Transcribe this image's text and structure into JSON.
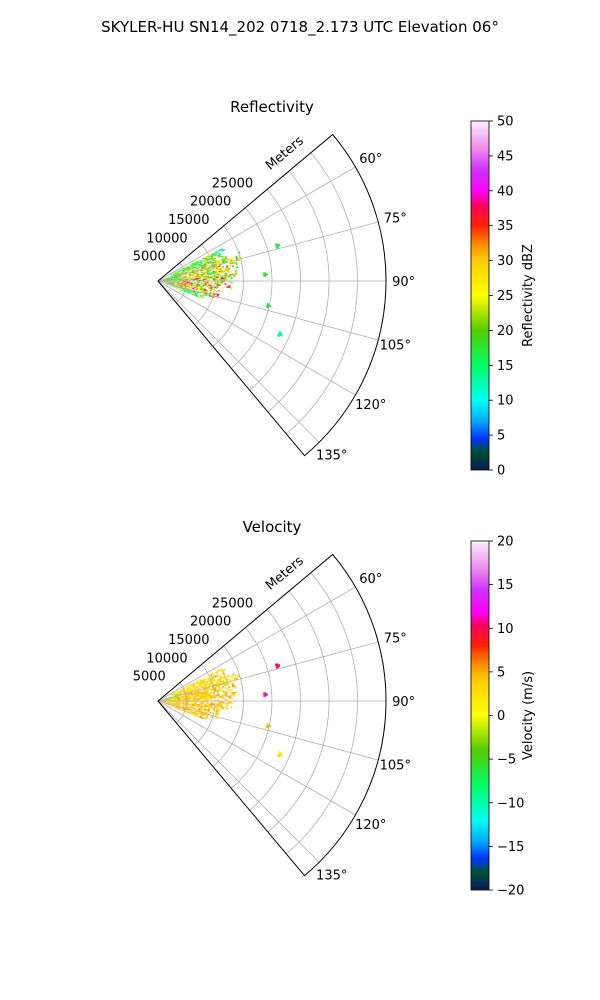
{
  "suptitle": "SKYLER-HU  SN14_202  0718_2.173 UTC Elevation 06°",
  "chart_data": [
    {
      "type": "polar_sector",
      "title": "Reflectivity",
      "field": "reflectivity",
      "range_label": "Meters",
      "theta_range_deg": [
        50,
        140
      ],
      "r_max": 40000,
      "r_ticks": [
        5000,
        10000,
        15000,
        20000,
        25000
      ],
      "r_tick_labels": [
        "5000",
        "10000",
        "15000",
        "20000",
        "25000"
      ],
      "theta_ticks_deg": [
        60,
        75,
        90,
        105,
        120,
        135
      ],
      "theta_tick_labels": [
        "60°",
        "75°",
        "90°",
        "105°",
        "120°",
        "135°"
      ],
      "grid": true,
      "colorbar": {
        "label": "Reflectivity dBZ",
        "vmin": 0,
        "vmax": 50,
        "ticks": [
          0,
          5,
          10,
          15,
          20,
          25,
          30,
          35,
          40,
          45,
          50
        ],
        "tick_labels": [
          "0",
          "5",
          "10",
          "15",
          "20",
          "25",
          "30",
          "35",
          "40",
          "45",
          "50"
        ],
        "stops": [
          [
            0,
            "#0a1a5c"
          ],
          [
            0.05,
            "#00502e"
          ],
          [
            0.09,
            "#0033ff"
          ],
          [
            0.14,
            "#00aaff"
          ],
          [
            0.2,
            "#00ffee"
          ],
          [
            0.3,
            "#00ff66"
          ],
          [
            0.4,
            "#55cc00"
          ],
          [
            0.5,
            "#ffff00"
          ],
          [
            0.6,
            "#ffcc00"
          ],
          [
            0.65,
            "#ff8800"
          ],
          [
            0.7,
            "#ff2200"
          ],
          [
            0.76,
            "#ff0066"
          ],
          [
            0.8,
            "#ff00ff"
          ],
          [
            0.86,
            "#cc33ff"
          ],
          [
            0.92,
            "#ee88ee"
          ],
          [
            1.0,
            "#fff0ff"
          ]
        ]
      },
      "echo_regions": [
        {
          "theta_deg": [
            63,
            70
          ],
          "r_m": [
            2500,
            13000
          ],
          "value": 18,
          "spread": 8
        },
        {
          "theta_deg": [
            70,
            76
          ],
          "r_m": [
            3000,
            15000
          ],
          "value": 24,
          "spread": 10
        },
        {
          "theta_deg": [
            76,
            86
          ],
          "r_m": [
            1000,
            14000
          ],
          "value": 25,
          "spread": 10
        },
        {
          "theta_deg": [
            86,
            96
          ],
          "r_m": [
            500,
            13000
          ],
          "value": 27,
          "spread": 12
        },
        {
          "theta_deg": [
            96,
            106
          ],
          "r_m": [
            500,
            11000
          ],
          "value": 28,
          "spread": 12
        },
        {
          "theta_deg": [
            106,
            112
          ],
          "r_m": [
            1500,
            9000
          ],
          "value": 18,
          "spread": 8
        },
        {
          "theta_deg": [
            70,
            90
          ],
          "r_m": [
            300,
            4000
          ],
          "value": 16,
          "spread": 6
        }
      ],
      "echo_specks": [
        {
          "theta_deg": 73,
          "r_m": 21500,
          "value": 16
        },
        {
          "theta_deg": 86,
          "r_m": 18500,
          "value": 17
        },
        {
          "theta_deg": 102,
          "r_m": 19500,
          "value": 16
        },
        {
          "theta_deg": 113,
          "r_m": 23000,
          "value": 12
        }
      ]
    },
    {
      "type": "polar_sector",
      "title": "Velocity",
      "field": "velocity",
      "range_label": "Meters",
      "theta_range_deg": [
        50,
        140
      ],
      "r_max": 40000,
      "r_ticks": [
        5000,
        10000,
        15000,
        20000,
        25000
      ],
      "r_tick_labels": [
        "5000",
        "10000",
        "15000",
        "20000",
        "25000"
      ],
      "theta_ticks_deg": [
        60,
        75,
        90,
        105,
        120,
        135
      ],
      "theta_tick_labels": [
        "60°",
        "75°",
        "90°",
        "105°",
        "120°",
        "135°"
      ],
      "grid": true,
      "colorbar": {
        "label": "Velocity (m/s)",
        "vmin": -20,
        "vmax": 20,
        "ticks": [
          -20,
          -15,
          -10,
          -5,
          0,
          5,
          10,
          15,
          20
        ],
        "tick_labels": [
          "−20",
          "−15",
          "−10",
          "−5",
          "0",
          "5",
          "10",
          "15",
          "20"
        ],
        "stops": [
          [
            0,
            "#0a1a5c"
          ],
          [
            0.05,
            "#00502e"
          ],
          [
            0.09,
            "#0033ff"
          ],
          [
            0.14,
            "#00aaff"
          ],
          [
            0.2,
            "#00ffee"
          ],
          [
            0.3,
            "#00ff66"
          ],
          [
            0.4,
            "#55cc00"
          ],
          [
            0.5,
            "#ffff00"
          ],
          [
            0.6,
            "#ffcc00"
          ],
          [
            0.65,
            "#ff8800"
          ],
          [
            0.7,
            "#ff2200"
          ],
          [
            0.76,
            "#ff0066"
          ],
          [
            0.8,
            "#ff00ff"
          ],
          [
            0.86,
            "#cc33ff"
          ],
          [
            0.92,
            "#ee88ee"
          ],
          [
            1.0,
            "#fff0ff"
          ]
        ]
      },
      "echo_regions": [
        {
          "theta_deg": [
            63,
            70
          ],
          "r_m": [
            2500,
            13000
          ],
          "value": 3,
          "spread": 2
        },
        {
          "theta_deg": [
            70,
            76
          ],
          "r_m": [
            3000,
            15000
          ],
          "value": 3,
          "spread": 2
        },
        {
          "theta_deg": [
            76,
            86
          ],
          "r_m": [
            1000,
            14000
          ],
          "value": 4,
          "spread": 2
        },
        {
          "theta_deg": [
            86,
            96
          ],
          "r_m": [
            500,
            13000
          ],
          "value": 4,
          "spread": 2
        },
        {
          "theta_deg": [
            96,
            106
          ],
          "r_m": [
            500,
            11000
          ],
          "value": 4,
          "spread": 2
        },
        {
          "theta_deg": [
            106,
            112
          ],
          "r_m": [
            1500,
            9000
          ],
          "value": 4,
          "spread": 2
        },
        {
          "theta_deg": [
            70,
            90
          ],
          "r_m": [
            300,
            4000
          ],
          "value": -2,
          "spread": 2
        }
      ],
      "echo_specks": [
        {
          "theta_deg": 73,
          "r_m": 21500,
          "value": 9
        },
        {
          "theta_deg": 86,
          "r_m": 18500,
          "value": 10
        },
        {
          "theta_deg": 102,
          "r_m": 19500,
          "value": 3
        },
        {
          "theta_deg": 113,
          "r_m": 23000,
          "value": 1
        }
      ]
    }
  ]
}
